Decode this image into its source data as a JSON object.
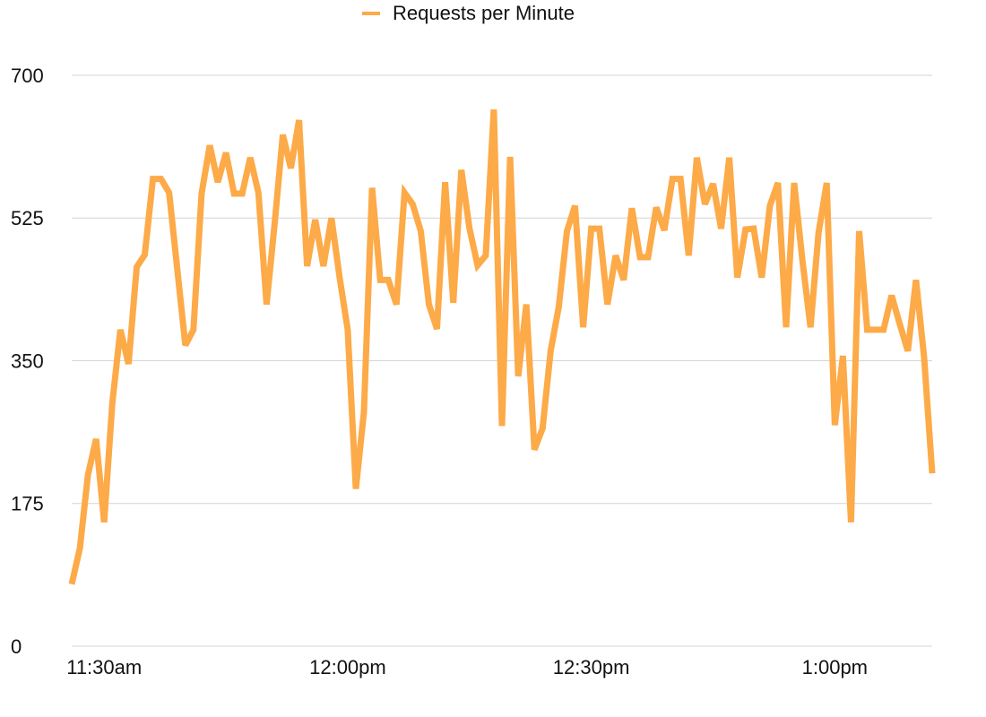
{
  "chart_data": {
    "type": "line",
    "series": [
      {
        "name": "Requests per Minute",
        "color": "#fdaa48",
        "values": [
          76,
          120,
          210,
          254,
          152,
          298,
          388,
          346,
          465,
          480,
          573,
          573,
          556,
          463,
          369,
          388,
          555,
          614,
          569,
          605,
          555,
          555,
          599,
          556,
          419,
          518,
          627,
          586,
          645,
          466,
          523,
          466,
          525,
          452,
          388,
          193,
          287,
          562,
          449,
          449,
          419,
          556,
          542,
          509,
          419,
          389,
          569,
          421,
          584,
          512,
          467,
          479,
          658,
          270,
          600,
          331,
          419,
          241,
          267,
          362,
          416,
          509,
          540,
          391,
          512,
          512,
          419,
          479,
          449,
          537,
          477,
          477,
          538,
          510,
          573,
          573,
          479,
          599,
          542,
          567,
          512,
          599,
          452,
          511,
          512,
          452,
          540,
          568,
          391,
          568,
          474,
          391,
          507,
          568,
          271,
          356,
          152,
          509,
          388,
          388,
          388,
          430,
          395,
          362,
          449,
          355,
          212
        ]
      }
    ],
    "x": [
      "11:26am",
      "11:27am",
      "11:28am",
      "11:29am",
      "11:30am",
      "11:31am",
      "11:32am",
      "11:33am",
      "11:34am",
      "11:35am",
      "11:36am",
      "11:37am",
      "11:38am",
      "11:39am",
      "11:40am",
      "11:41am",
      "11:42am",
      "11:43am",
      "11:44am",
      "11:45am",
      "11:46am",
      "11:47am",
      "11:48am",
      "11:49am",
      "11:50am",
      "11:51am",
      "11:52am",
      "11:53am",
      "11:54am",
      "11:55am",
      "11:56am",
      "11:57am",
      "11:58am",
      "11:59am",
      "12:00pm",
      "12:01pm",
      "12:02pm",
      "12:03pm",
      "12:04pm",
      "12:05pm",
      "12:06pm",
      "12:07pm",
      "12:08pm",
      "12:09pm",
      "12:10pm",
      "12:11pm",
      "12:12pm",
      "12:13pm",
      "12:14pm",
      "12:15pm",
      "12:16pm",
      "12:17pm",
      "12:18pm",
      "12:19pm",
      "12:20pm",
      "12:21pm",
      "12:22pm",
      "12:23pm",
      "12:24pm",
      "12:25pm",
      "12:26pm",
      "12:27pm",
      "12:28pm",
      "12:29pm",
      "12:30pm",
      "12:31pm",
      "12:32pm",
      "12:33pm",
      "12:34pm",
      "12:35pm",
      "12:36pm",
      "12:37pm",
      "12:38pm",
      "12:39pm",
      "12:40pm",
      "12:41pm",
      "12:42pm",
      "12:43pm",
      "12:44pm",
      "12:45pm",
      "12:46pm",
      "12:47pm",
      "12:48pm",
      "12:49pm",
      "12:50pm",
      "12:51pm",
      "12:52pm",
      "12:53pm",
      "12:54pm",
      "12:55pm",
      "12:56pm",
      "12:57pm",
      "12:58pm",
      "12:59pm",
      "1:00pm",
      "1:01pm",
      "1:02pm",
      "1:03pm",
      "1:04pm",
      "1:05pm",
      "1:06pm",
      "1:07pm",
      "1:08pm",
      "1:09pm",
      "1:10pm",
      "1:11pm",
      "1:12pm"
    ],
    "xlim": [
      "11:26am",
      "1:12pm"
    ],
    "xticks": [
      "11:30am",
      "12:00pm",
      "12:30pm",
      "1:00pm"
    ],
    "ylim": [
      0,
      700
    ],
    "yticks": [
      0,
      175,
      350,
      525,
      700
    ],
    "grid": true,
    "legend": "top"
  }
}
